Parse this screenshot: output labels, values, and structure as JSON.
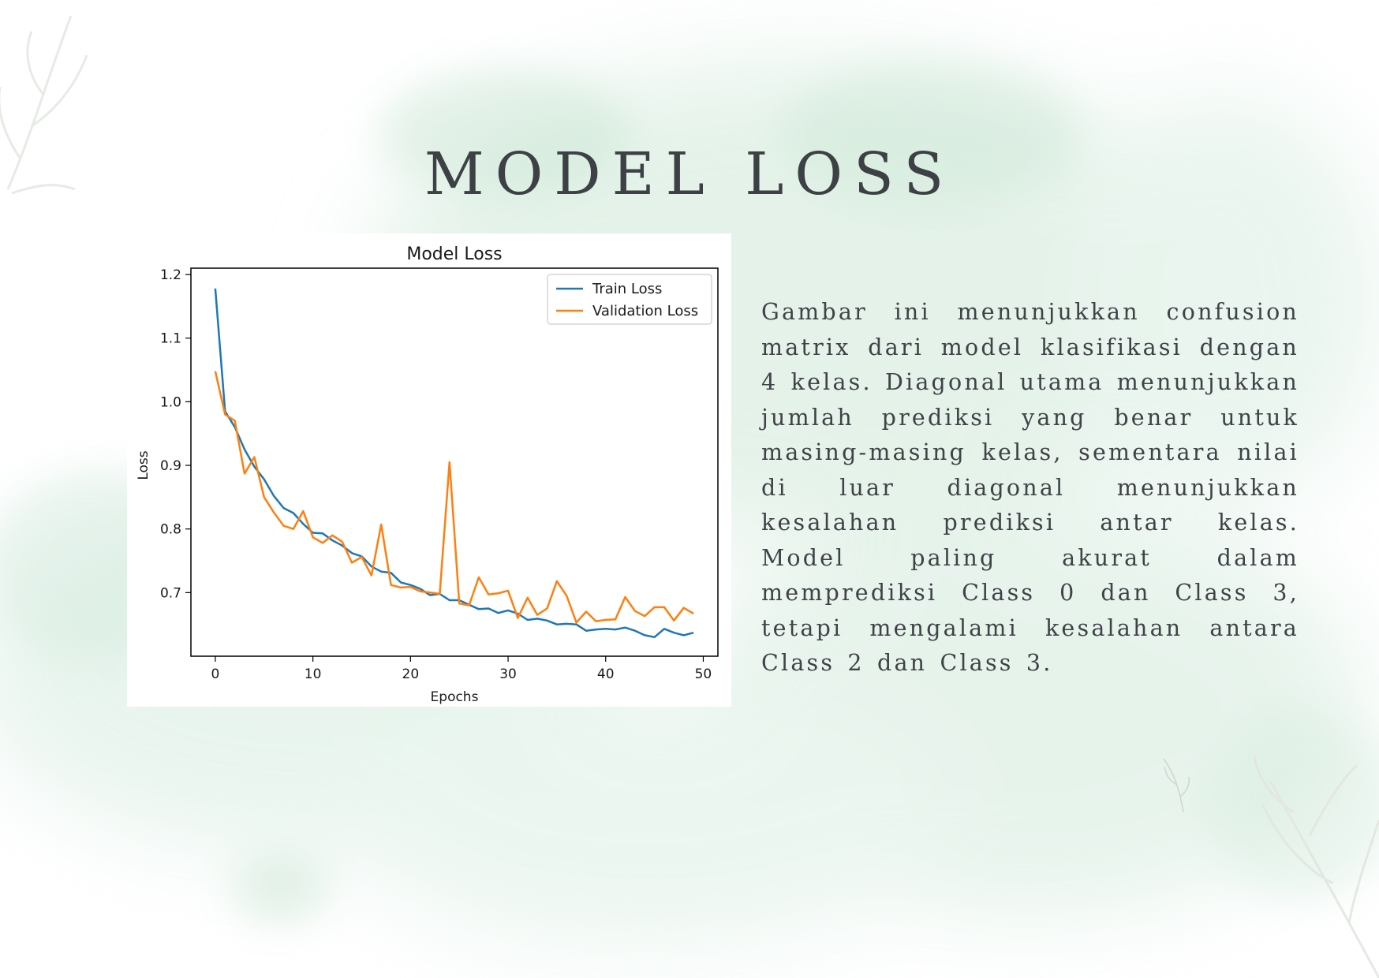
{
  "slide": {
    "title": "MODEL LOSS",
    "body": "Gambar ini menunjukkan confusion matrix dari model klasifikasi dengan 4 kelas. Diagonal utama menunjukkan jumlah prediksi yang benar untuk masing-masing kelas, sementara nilai di luar diagonal menunjukkan kesalahan prediksi antar kelas. Model paling akurat dalam memprediksi Class 0 dan Class 3, tetapi mengalami kesalahan antara Class 2 dan Class 3."
  },
  "colors": {
    "train": "#1f77b4",
    "validation": "#ff7f0e",
    "wash": "#c9e6d4"
  },
  "chart_data": {
    "type": "line",
    "title": "Model Loss",
    "xlabel": "Epochs",
    "ylabel": "Loss",
    "xlim": [
      -2.5,
      51.5
    ],
    "ylim": [
      0.6,
      1.21
    ],
    "xticks": [
      0,
      10,
      20,
      30,
      40,
      50
    ],
    "yticks": [
      0.7,
      0.8,
      0.9,
      1.0,
      1.1,
      1.2
    ],
    "xtick_labels": [
      "0",
      "10",
      "20",
      "30",
      "40",
      "50"
    ],
    "ytick_labels": [
      "0.7",
      "0.8",
      "0.9",
      "1.0",
      "1.1",
      "1.2"
    ],
    "grid": false,
    "legend_position": "upper right",
    "x": [
      0,
      1,
      2,
      3,
      4,
      5,
      6,
      7,
      8,
      9,
      10,
      11,
      12,
      13,
      14,
      15,
      16,
      17,
      18,
      19,
      20,
      21,
      22,
      23,
      24,
      25,
      26,
      27,
      28,
      29,
      30,
      31,
      32,
      33,
      34,
      35,
      36,
      37,
      38,
      39,
      40,
      41,
      42,
      43,
      44,
      45,
      46,
      47,
      48,
      49
    ],
    "series": [
      {
        "name": "Train Loss",
        "color": "#1f77b4",
        "values": [
          1.178,
          0.985,
          0.96,
          0.925,
          0.898,
          0.878,
          0.852,
          0.833,
          0.825,
          0.808,
          0.794,
          0.793,
          0.782,
          0.774,
          0.762,
          0.757,
          0.741,
          0.733,
          0.731,
          0.716,
          0.712,
          0.706,
          0.696,
          0.698,
          0.688,
          0.688,
          0.681,
          0.674,
          0.675,
          0.668,
          0.672,
          0.667,
          0.657,
          0.659,
          0.656,
          0.65,
          0.651,
          0.65,
          0.64,
          0.642,
          0.643,
          0.642,
          0.645,
          0.64,
          0.633,
          0.63,
          0.643,
          0.637,
          0.633,
          0.637
        ]
      },
      {
        "name": "Validation Loss",
        "color": "#ff7f0e",
        "values": [
          1.048,
          0.98,
          0.97,
          0.887,
          0.913,
          0.85,
          0.826,
          0.805,
          0.8,
          0.828,
          0.787,
          0.778,
          0.79,
          0.78,
          0.747,
          0.756,
          0.727,
          0.807,
          0.712,
          0.708,
          0.709,
          0.702,
          0.7,
          0.698,
          0.905,
          0.683,
          0.68,
          0.724,
          0.697,
          0.699,
          0.703,
          0.66,
          0.692,
          0.665,
          0.675,
          0.718,
          0.695,
          0.653,
          0.67,
          0.655,
          0.657,
          0.658,
          0.693,
          0.671,
          0.663,
          0.677,
          0.677,
          0.656,
          0.676,
          0.667
        ]
      }
    ]
  }
}
